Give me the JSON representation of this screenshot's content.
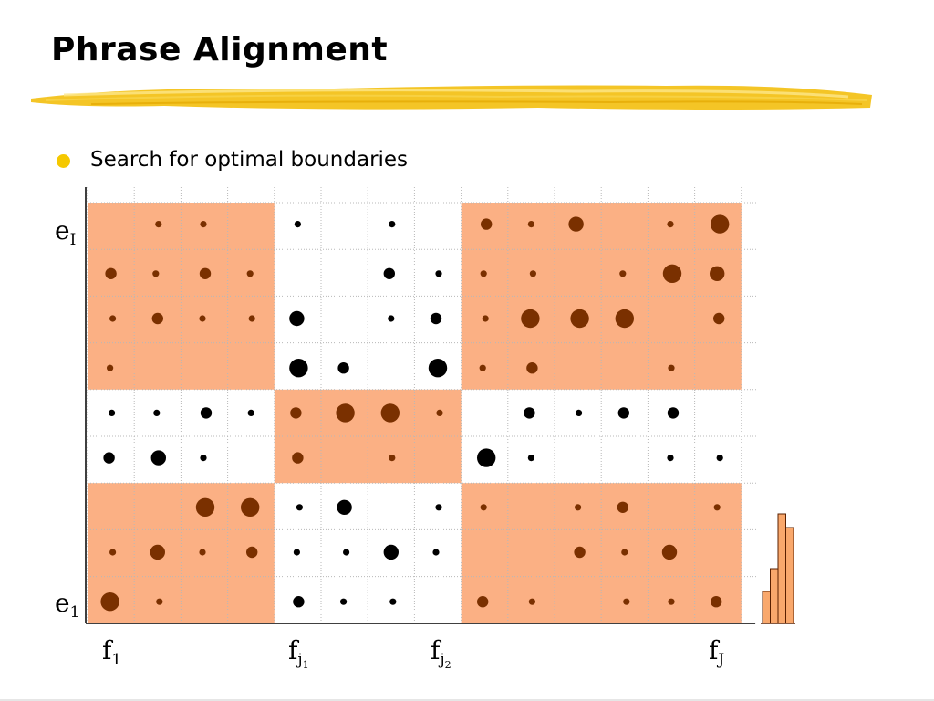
{
  "slide": {
    "title": "Phrase Alignment",
    "bullet": "Search for optimal boundaries"
  },
  "colors": {
    "highlight": "#fbb084",
    "dot_in_block": "#7a3000",
    "dot_outside": "#000000",
    "bullet": "#f5c800",
    "histogram_fill": "#f9a86c",
    "histogram_stroke": "#5a2000",
    "brush": "#f3c21a"
  },
  "labels": {
    "e_top": {
      "base": "e",
      "sub": "I"
    },
    "e_bottom": {
      "base": "e",
      "sub": "1"
    },
    "f_first": {
      "base": "f",
      "sub": "1"
    },
    "f_j1": {
      "base": "f",
      "sub": "j",
      "subsub": "1"
    },
    "f_j2": {
      "base": "f",
      "sub": "j",
      "subsub": "2"
    },
    "f_last": {
      "base": "f",
      "sub": "J"
    }
  },
  "matrix": {
    "cols": 14,
    "rows": 9,
    "highlight_blocks": [
      {
        "cols": [
          0,
          3
        ],
        "rows": [
          0,
          3
        ]
      },
      {
        "cols": [
          8,
          13
        ],
        "rows": [
          0,
          3
        ]
      },
      {
        "cols": [
          4,
          7
        ],
        "rows": [
          4,
          5
        ]
      },
      {
        "cols": [
          0,
          3
        ],
        "rows": [
          6,
          8
        ]
      },
      {
        "cols": [
          8,
          13
        ],
        "rows": [
          6,
          8
        ]
      }
    ],
    "dots_by_row_top_to_bottom": [
      [
        0,
        1,
        1,
        0,
        1,
        0,
        1,
        0,
        2,
        1,
        3,
        0,
        1,
        4
      ],
      [
        2,
        1,
        2,
        1,
        0,
        0,
        2,
        1,
        1,
        1,
        0,
        1,
        4,
        3
      ],
      [
        1,
        2,
        1,
        1,
        3,
        0,
        1,
        2,
        1,
        4,
        4,
        4,
        0,
        2
      ],
      [
        1,
        0,
        0,
        0,
        4,
        2,
        0,
        4,
        1,
        2,
        0,
        0,
        1,
        0
      ],
      [
        1,
        1,
        2,
        1,
        2,
        4,
        4,
        1,
        0,
        2,
        1,
        2,
        2,
        0
      ],
      [
        2,
        3,
        1,
        0,
        2,
        0,
        1,
        0,
        4,
        1,
        0,
        0,
        1,
        1
      ],
      [
        0,
        0,
        4,
        4,
        1,
        3,
        0,
        1,
        1,
        0,
        1,
        2,
        0,
        1
      ],
      [
        1,
        3,
        1,
        2,
        1,
        1,
        3,
        1,
        0,
        0,
        2,
        1,
        3,
        0
      ],
      [
        4,
        1,
        0,
        0,
        2,
        1,
        1,
        0,
        2,
        1,
        0,
        1,
        1,
        2
      ]
    ]
  },
  "histogram": {
    "bar_levels": [
      35,
      60,
      120,
      105
    ]
  }
}
